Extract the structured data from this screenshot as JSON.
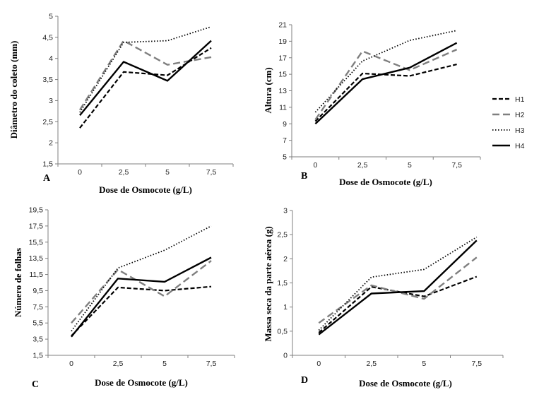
{
  "chart_data": [
    {
      "panel": "A",
      "type": "line",
      "xlabel": "Dose de Osmocote (g/L)",
      "ylabel": "Diâmetro do coleto (mm)",
      "categories": [
        "0",
        "2,5",
        "5",
        "7,5"
      ],
      "ylim": [
        1.5,
        5
      ],
      "yticks": [
        "1,5",
        "2",
        "2,5",
        "3",
        "3,5",
        "4",
        "4,5",
        "5"
      ],
      "series": [
        {
          "name": "H1",
          "values": [
            2.35,
            3.68,
            3.6,
            4.25
          ]
        },
        {
          "name": "H2",
          "values": [
            2.78,
            4.42,
            3.85,
            4.03
          ]
        },
        {
          "name": "H3",
          "values": [
            2.72,
            4.38,
            4.42,
            4.75
          ]
        },
        {
          "name": "H4",
          "values": [
            2.65,
            3.92,
            3.47,
            4.42
          ]
        }
      ]
    },
    {
      "panel": "B",
      "type": "line",
      "xlabel": "Dose de Osmocote (g/L)",
      "ylabel": "Altura (cm)",
      "categories": [
        "0",
        "2,5",
        "5",
        "7,5"
      ],
      "ylim": [
        5,
        21
      ],
      "yticks": [
        "5",
        "7",
        "9",
        "11",
        "13",
        "15",
        "17",
        "19",
        "21"
      ],
      "series": [
        {
          "name": "H1",
          "values": [
            9.3,
            15.1,
            14.8,
            16.2
          ]
        },
        {
          "name": "H2",
          "values": [
            9.5,
            17.8,
            15.5,
            18.0
          ]
        },
        {
          "name": "H3",
          "values": [
            10.4,
            16.6,
            19.1,
            20.3
          ]
        },
        {
          "name": "H4",
          "values": [
            9.0,
            14.4,
            15.8,
            18.8
          ]
        }
      ]
    },
    {
      "panel": "C",
      "type": "line",
      "xlabel": "Dose de Osmocote (g/L)",
      "ylabel": "Número de folhas",
      "categories": [
        "0",
        "2,5",
        "5",
        "7,5"
      ],
      "ylim": [
        1.5,
        19.5
      ],
      "yticks": [
        "1,5",
        "3,5",
        "5,5",
        "7,5",
        "9,5",
        "11,5",
        "13,5",
        "15,5",
        "17,5",
        "19,5"
      ],
      "series": [
        {
          "name": "H1",
          "values": [
            3.9,
            9.9,
            9.5,
            10.0
          ]
        },
        {
          "name": "H2",
          "values": [
            5.5,
            12.1,
            8.8,
            13.2
          ]
        },
        {
          "name": "H3",
          "values": [
            4.5,
            12.3,
            14.5,
            17.5
          ]
        },
        {
          "name": "H4",
          "values": [
            3.8,
            11.0,
            10.6,
            13.6
          ]
        }
      ]
    },
    {
      "panel": "D",
      "type": "line",
      "xlabel": "Dose de Osmocote (g/L)",
      "ylabel": "Massa seca da parte aérea (g)",
      "categories": [
        "0",
        "2,5",
        "5",
        "7,5"
      ],
      "ylim": [
        0,
        3
      ],
      "yticks": [
        "0",
        "0,5",
        "1",
        "1,5",
        "2",
        "2,5",
        "3"
      ],
      "series": [
        {
          "name": "H1",
          "values": [
            0.47,
            1.42,
            1.22,
            1.63
          ]
        },
        {
          "name": "H2",
          "values": [
            0.67,
            1.45,
            1.17,
            2.03
          ]
        },
        {
          "name": "H3",
          "values": [
            0.52,
            1.62,
            1.78,
            2.45
          ]
        },
        {
          "name": "H4",
          "values": [
            0.43,
            1.28,
            1.33,
            2.38
          ]
        }
      ]
    }
  ],
  "legend": [
    "H1",
    "H2",
    "H3",
    "H4"
  ],
  "styles": {
    "H1": {
      "color": "#000000",
      "dash": "6,3",
      "width": 2.2
    },
    "H2": {
      "color": "#7f7f7f",
      "dash": "10,5",
      "width": 2.4
    },
    "H3": {
      "color": "#000000",
      "dash": "1.5,2.5",
      "width": 1.8
    },
    "H4": {
      "color": "#000000",
      "dash": "",
      "width": 2.4
    }
  }
}
